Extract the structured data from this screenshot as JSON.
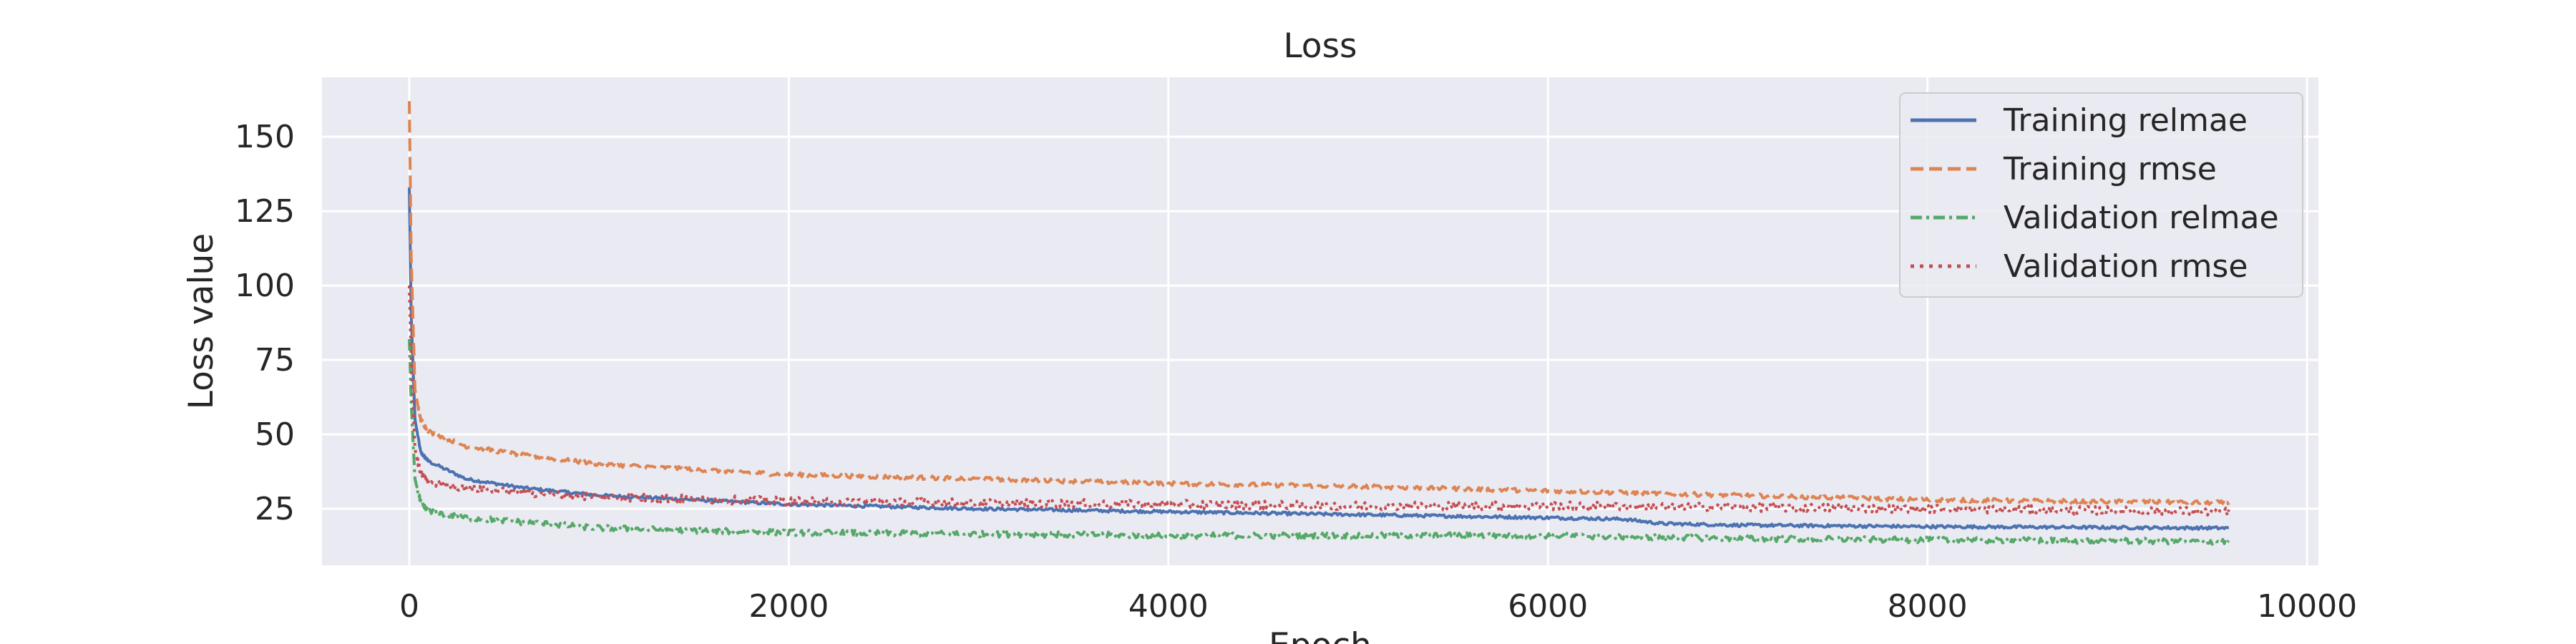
{
  "chart_data": {
    "type": "line",
    "title": "Loss",
    "xlabel": "Epoch",
    "ylabel": "Loss value",
    "xlim": [
      -460,
      10060
    ],
    "ylim": [
      6,
      170
    ],
    "xticks": [
      0,
      2000,
      4000,
      6000,
      8000,
      10000
    ],
    "yticks": [
      25,
      50,
      75,
      100,
      125,
      150
    ],
    "grid": true,
    "background": "#EAEAF2",
    "legend_position": "top-right",
    "x_max": 9590,
    "series": [
      {
        "name": "Training relmae",
        "color": "#4C72B0",
        "linestyle": "solid",
        "noise": 0.5,
        "keypoints": [
          [
            0,
            133
          ],
          [
            10,
            90
          ],
          [
            30,
            55
          ],
          [
            60,
            44
          ],
          [
            100,
            41
          ],
          [
            300,
            35
          ],
          [
            600,
            32
          ],
          [
            1000,
            29.5
          ],
          [
            2000,
            26.5
          ],
          [
            3000,
            25
          ],
          [
            4000,
            24
          ],
          [
            5000,
            23
          ],
          [
            6000,
            22
          ],
          [
            6400,
            21.5
          ],
          [
            6600,
            20
          ],
          [
            7000,
            19.5
          ],
          [
            8000,
            19
          ],
          [
            9590,
            18.5
          ]
        ]
      },
      {
        "name": "Training rmse",
        "color": "#DD8452",
        "linestyle": "dashed",
        "noise": 0.7,
        "keypoints": [
          [
            0,
            162
          ],
          [
            10,
            110
          ],
          [
            30,
            65
          ],
          [
            60,
            55
          ],
          [
            100,
            51
          ],
          [
            300,
            46
          ],
          [
            600,
            43
          ],
          [
            1000,
            40
          ],
          [
            2000,
            36.5
          ],
          [
            3000,
            35
          ],
          [
            4000,
            33.5
          ],
          [
            5000,
            32.5
          ],
          [
            6000,
            31
          ],
          [
            7000,
            29.5
          ],
          [
            8000,
            28
          ],
          [
            9590,
            27
          ]
        ]
      },
      {
        "name": "Validation relmae",
        "color": "#55A868",
        "linestyle": "dashdot",
        "noise": 1.0,
        "keypoints": [
          [
            0,
            82
          ],
          [
            10,
            60
          ],
          [
            30,
            35
          ],
          [
            60,
            27
          ],
          [
            100,
            24
          ],
          [
            300,
            22
          ],
          [
            600,
            20.5
          ],
          [
            1000,
            18.5
          ],
          [
            2000,
            17
          ],
          [
            3000,
            16.5
          ],
          [
            4000,
            16
          ],
          [
            5000,
            16
          ],
          [
            6000,
            16
          ],
          [
            6500,
            15.5
          ],
          [
            7000,
            15
          ],
          [
            8000,
            14.5
          ],
          [
            9590,
            14
          ]
        ]
      },
      {
        "name": "Validation rmse",
        "color": "#C44E52",
        "linestyle": "dotted",
        "noise": 1.4,
        "keypoints": [
          [
            0,
            100
          ],
          [
            10,
            75
          ],
          [
            30,
            45
          ],
          [
            60,
            37
          ],
          [
            100,
            34
          ],
          [
            300,
            32
          ],
          [
            600,
            30.5
          ],
          [
            1000,
            29
          ],
          [
            2000,
            27.5
          ],
          [
            3000,
            27
          ],
          [
            4000,
            26.5
          ],
          [
            5000,
            26
          ],
          [
            6000,
            26
          ],
          [
            7000,
            25.5
          ],
          [
            8000,
            25
          ],
          [
            9590,
            24
          ]
        ]
      }
    ]
  }
}
